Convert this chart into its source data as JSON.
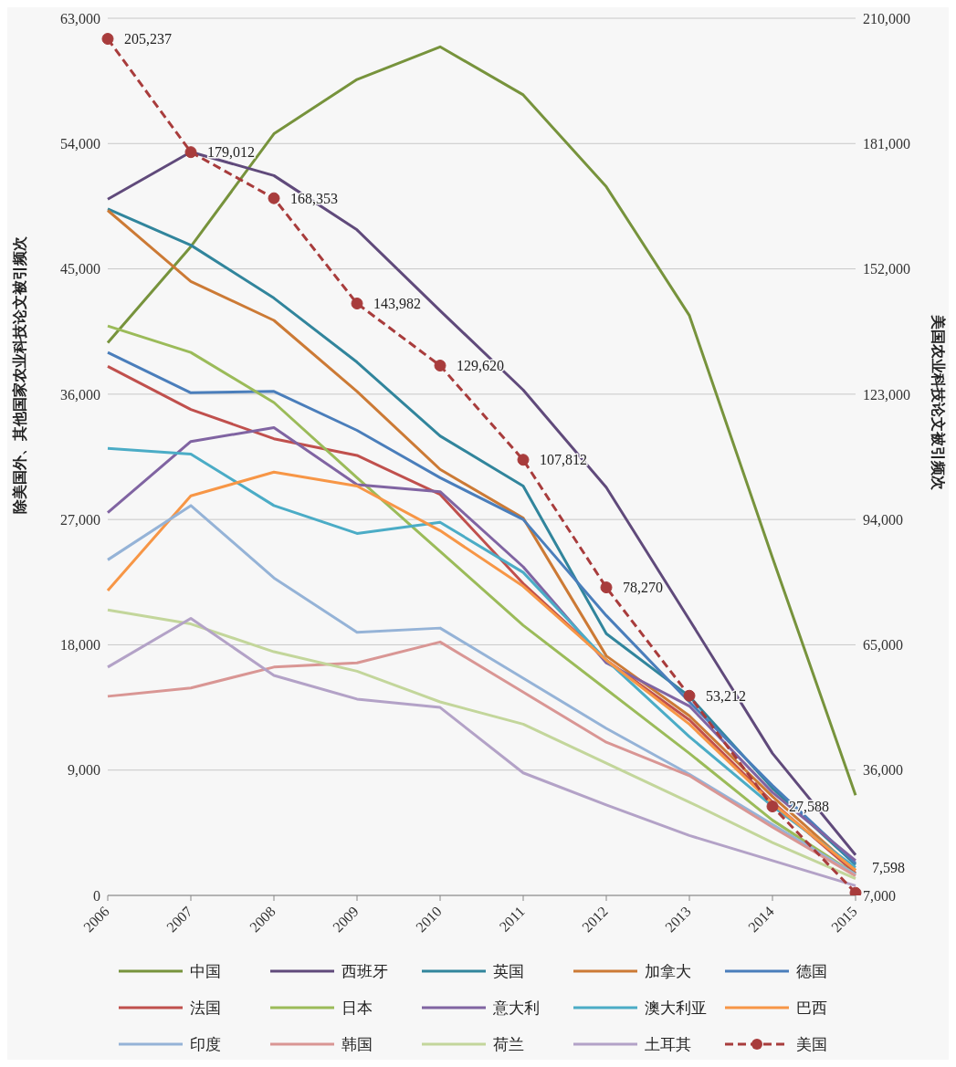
{
  "chart_data": {
    "type": "line",
    "categories": [
      "2006",
      "2007",
      "2008",
      "2009",
      "2010",
      "2011",
      "2012",
      "2013",
      "2014",
      "2015"
    ],
    "ylabel": "除美国外、其他国家农业科技论文被引频次",
    "y2label": "美国农业科技论文被引频次",
    "ylim": [
      0,
      63000
    ],
    "yticks": [
      0,
      {
        "value": 9000,
        "label": "9,000"
      },
      {
        "value": 18000,
        "label": "18,000"
      },
      {
        "value": 27000,
        "label": "27,000"
      },
      {
        "value": 36000,
        "label": "36,000"
      },
      {
        "value": 45000,
        "label": "45,000"
      },
      {
        "value": 54000,
        "label": "54,000"
      },
      {
        "value": 63000,
        "label": "63,000"
      }
    ],
    "y2lim": [
      7000,
      210000
    ],
    "y2ticks": [
      {
        "value": 7000,
        "label": "7,000"
      },
      {
        "value": 36000,
        "label": "36,000"
      },
      {
        "value": 65000,
        "label": "65,000"
      },
      {
        "value": 94000,
        "label": "94,000"
      },
      {
        "value": 123000,
        "label": "123,000"
      },
      {
        "value": 152000,
        "label": "152,000"
      },
      {
        "value": 181000,
        "label": "181,000"
      },
      {
        "value": 210000,
        "label": "210,000"
      }
    ],
    "grid": "y",
    "legend": "bottom",
    "marker": "none",
    "line_style": "solid",
    "series": [
      {
        "name": "中国",
        "color": "#77933c",
        "values": [
          39700,
          46600,
          54700,
          58600,
          60950,
          57500,
          50900,
          41650,
          24260,
          7200
        ]
      },
      {
        "name": "西班牙",
        "color": "#604a7b",
        "values": [
          50000,
          53400,
          51700,
          47800,
          42000,
          36300,
          29300,
          19800,
          10200,
          2900
        ]
      },
      {
        "name": "英国",
        "color": "#31859c",
        "values": [
          49300,
          46700,
          42900,
          38300,
          33000,
          29400,
          18800,
          14300,
          7700,
          2200
        ]
      },
      {
        "name": "加拿大",
        "color": "#cc7a35",
        "values": [
          49200,
          44100,
          41300,
          36200,
          30600,
          27100,
          17200,
          12900,
          7100,
          1800
        ]
      },
      {
        "name": "德国",
        "color": "#4a7ebb",
        "values": [
          39000,
          36100,
          36200,
          33400,
          30000,
          27000,
          20100,
          13900,
          7900,
          2300
        ]
      },
      {
        "name": "法国",
        "color": "#c0504d",
        "values": [
          38000,
          34900,
          32800,
          31600,
          28800,
          22400,
          16900,
          12600,
          6700,
          1600
        ]
      },
      {
        "name": "日本",
        "color": "#9bbb59",
        "values": [
          40900,
          39000,
          35400,
          30000,
          24700,
          19400,
          14800,
          10200,
          5400,
          1500
        ]
      },
      {
        "name": "意大利",
        "color": "#8064a2",
        "values": [
          27500,
          32600,
          33600,
          29500,
          29000,
          23600,
          16700,
          13600,
          7400,
          2500
        ]
      },
      {
        "name": "澳大利亚",
        "color": "#4bacc6",
        "values": [
          32100,
          31700,
          28000,
          26000,
          26800,
          23200,
          16900,
          11400,
          6400,
          2000
        ]
      },
      {
        "name": "巴西",
        "color": "#f79646",
        "values": [
          21900,
          28700,
          30400,
          29400,
          26200,
          22200,
          16900,
          12300,
          6600,
          1800
        ]
      },
      {
        "name": "印度",
        "color": "#95b3d7",
        "values": [
          24100,
          28000,
          22800,
          18900,
          19200,
          15600,
          12000,
          8700,
          5100,
          1500
        ]
      },
      {
        "name": "韩国",
        "color": "#d99694",
        "values": [
          14300,
          14900,
          16400,
          16700,
          18200,
          14600,
          11000,
          8600,
          4900,
          1400
        ]
      },
      {
        "name": "荷兰",
        "color": "#c3d69b",
        "values": [
          20500,
          19500,
          17500,
          16100,
          13900,
          12300,
          9500,
          6700,
          3800,
          1200
        ]
      },
      {
        "name": "土耳其",
        "color": "#b3a2c7",
        "values": [
          16400,
          19900,
          15800,
          14100,
          13500,
          8800,
          6500,
          4300,
          2500,
          700
        ]
      },
      {
        "name": "美国",
        "color": "#a83c3c",
        "axis": "y2",
        "marker": "circle",
        "line_style": "dashed",
        "value_labels": [
          "205,237",
          "179,012",
          "168,353",
          "143,982",
          "129,620",
          "107,812",
          "78,270",
          "53,212",
          "27,588",
          "7,598"
        ],
        "values": [
          205237,
          179012,
          168353,
          143982,
          129620,
          107812,
          78270,
          53212,
          27588,
          7598
        ]
      }
    ]
  }
}
